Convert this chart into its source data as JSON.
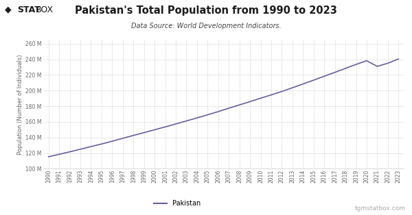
{
  "title": "Pakistan's Total Population from 1990 to 2023",
  "subtitle": "Data Source: World Development Indicators.",
  "ylabel": "Population (Number of Individuals)",
  "line_color": "#6B5B9E",
  "line_label": "Pakistan",
  "background_color": "#ffffff",
  "grid_color": "#e0e0e0",
  "ylim": [
    100000000,
    265000000
  ],
  "yticks": [
    100000000,
    120000000,
    140000000,
    160000000,
    180000000,
    200000000,
    220000000,
    240000000,
    260000000
  ],
  "ytick_labels": [
    "100 M",
    "120 M",
    "140 M",
    "160 M",
    "180 M",
    "200 M",
    "220 M",
    "240 M",
    "260 M"
  ],
  "years": [
    1990,
    1991,
    1992,
    1993,
    1994,
    1995,
    1996,
    1997,
    1998,
    1999,
    2000,
    2001,
    2002,
    2003,
    2004,
    2005,
    2006,
    2007,
    2008,
    2009,
    2010,
    2011,
    2012,
    2013,
    2014,
    2015,
    2016,
    2017,
    2018,
    2019,
    2020,
    2021,
    2022,
    2023
  ],
  "population": [
    115414069,
    118514147,
    121697932,
    125000001,
    128418836,
    131700000,
    135280277,
    138963648,
    142656000,
    146200000,
    149910000,
    153578000,
    157328000,
    161190000,
    165080000,
    169030000,
    173150000,
    177470000,
    181710000,
    185890000,
    190291558,
    194454498,
    198887000,
    203632000,
    208450000,
    213341000,
    218396000,
    223293000,
    228448000,
    233500000,
    238180741,
    231000000,
    235000000,
    240485658
  ],
  "watermark": "tgmstatbox.com",
  "logo_diamond": "◆",
  "logo_stat": "STAT",
  "logo_box": "BOX",
  "title_fontsize": 10.5,
  "subtitle_fontsize": 7,
  "tick_fontsize": 5.5,
  "ylabel_fontsize": 6,
  "legend_fontsize": 7,
  "watermark_fontsize": 6.5
}
